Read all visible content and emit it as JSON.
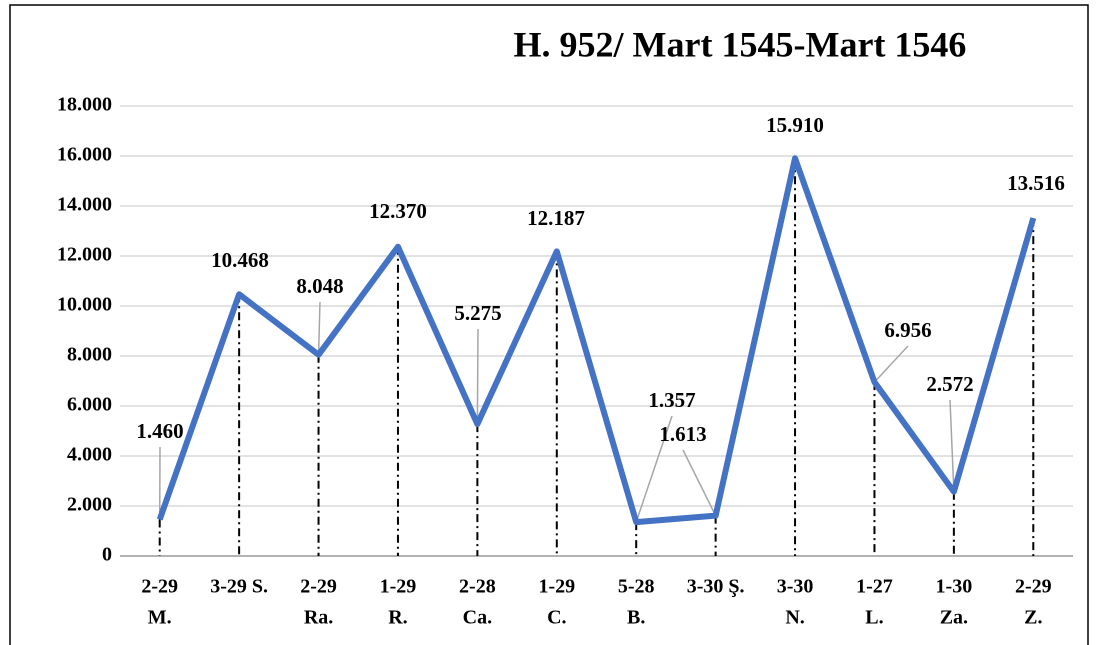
{
  "chart_data": {
    "type": "line",
    "title": "H. 952/ Mart 1545-Mart 1546",
    "categories": [
      [
        "2-29",
        "M."
      ],
      [
        "3-29 S."
      ],
      [
        "2-29",
        "Ra."
      ],
      [
        "1-29",
        "R."
      ],
      [
        "2-28",
        "Ca."
      ],
      [
        "1-29",
        "C."
      ],
      [
        "5-28",
        "B."
      ],
      [
        "3-30 Ş."
      ],
      [
        "3-30",
        "N."
      ],
      [
        "1-27",
        "L."
      ],
      [
        "1-30",
        "Za."
      ],
      [
        "2-29",
        "Z."
      ]
    ],
    "series": [
      {
        "name": null,
        "color": "#4472c4",
        "values": [
          1460,
          10468,
          8048,
          12370,
          5275,
          12187,
          1357,
          1613,
          15910,
          6956,
          2572,
          13516
        ],
        "value_labels": [
          "1.460",
          "10.468",
          "8.048",
          "12.370",
          "5.275",
          "12.187",
          "1.357",
          "1.613",
          "15.910",
          "6.956",
          "2.572",
          "13.516"
        ]
      }
    ],
    "ylim": [
      0,
      18000
    ],
    "yticks": [
      0,
      {
        "value": 2000,
        "label": "2.000"
      },
      {
        "value": 4000,
        "label": "4.000"
      },
      {
        "value": 6000,
        "label": "6.000"
      },
      {
        "value": 8000,
        "label": "8.000"
      },
      {
        "value": 10000,
        "label": "10.000"
      },
      {
        "value": 12000,
        "label": "12.000"
      },
      {
        "value": 14000,
        "label": "14.000"
      },
      {
        "value": 16000,
        "label": "16.000"
      },
      {
        "value": 18000,
        "label": "18.000"
      }
    ],
    "grid": true
  }
}
